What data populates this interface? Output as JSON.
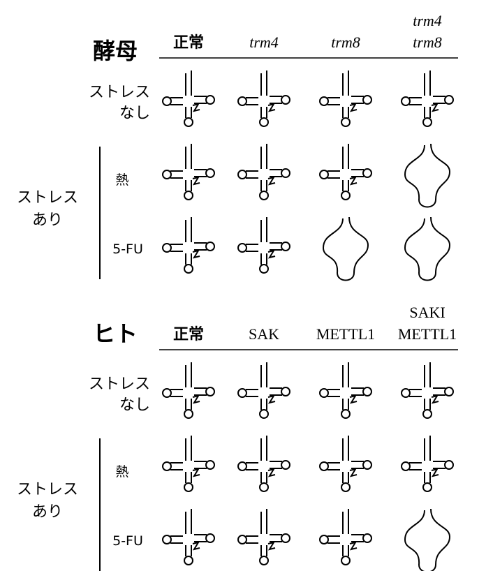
{
  "panels": [
    {
      "title": "酵母",
      "columns": [
        [
          "正常"
        ],
        [
          "trm4"
        ],
        [
          "trm8"
        ],
        [
          "trm4",
          "trm8"
        ]
      ],
      "italic_columns": [
        false,
        true,
        true,
        true
      ],
      "row_labels": [
        [
          "ストレス",
          "なし"
        ],
        [
          "熱"
        ],
        [
          "5-FU"
        ]
      ],
      "group_label": [
        "ストレス",
        "あり"
      ],
      "degraded": [
        [
          false,
          false,
          false,
          false
        ],
        [
          false,
          false,
          false,
          true
        ],
        [
          false,
          false,
          true,
          true
        ]
      ]
    },
    {
      "title": "ヒト",
      "columns": [
        [
          "正常"
        ],
        [
          "SAK"
        ],
        [
          "METTL1"
        ],
        [
          "SAKI",
          "METTL1"
        ]
      ],
      "italic_columns": [
        false,
        false,
        false,
        false
      ],
      "row_labels": [
        [
          "ストレス",
          "なし"
        ],
        [
          "熱"
        ],
        [
          "5-FU"
        ]
      ],
      "group_label": [
        "ストレス",
        "あり"
      ],
      "degraded": [
        [
          false,
          false,
          false,
          false
        ],
        [
          false,
          false,
          false,
          false
        ],
        [
          false,
          false,
          false,
          true
        ]
      ]
    }
  ]
}
